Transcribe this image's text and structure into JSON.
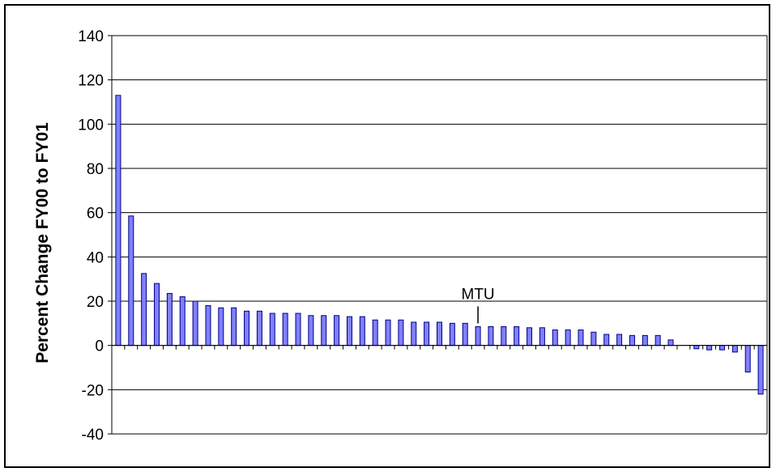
{
  "chart_data": {
    "type": "bar",
    "title": "",
    "xlabel": "",
    "ylabel": "Percent Change FY00 to FY01",
    "ylim": [
      -40,
      140
    ],
    "yticks": [
      140,
      120,
      100,
      80,
      60,
      40,
      20,
      0,
      -20,
      -40
    ],
    "grid": true,
    "legend": "none",
    "annotations": [
      {
        "text": "MTU",
        "category_index": 28
      }
    ],
    "values": [
      113,
      58.5,
      32.5,
      28,
      23.5,
      22,
      20,
      18,
      17,
      17,
      15.5,
      15.5,
      14.5,
      14.5,
      14.5,
      13.5,
      13.5,
      13.5,
      13,
      13,
      11.5,
      11.5,
      11.5,
      10.5,
      10.5,
      10.5,
      10,
      10,
      8.5,
      8.5,
      8.5,
      8.5,
      8,
      8,
      7,
      7,
      7,
      6,
      5,
      5,
      4.5,
      4.5,
      4.5,
      2.5,
      0,
      -1.5,
      -2,
      -2,
      -3,
      -12,
      -22
    ],
    "colors": {
      "bar_fill": "#8080ff",
      "bar_stroke": "#000080",
      "grid": "#000000"
    }
  }
}
